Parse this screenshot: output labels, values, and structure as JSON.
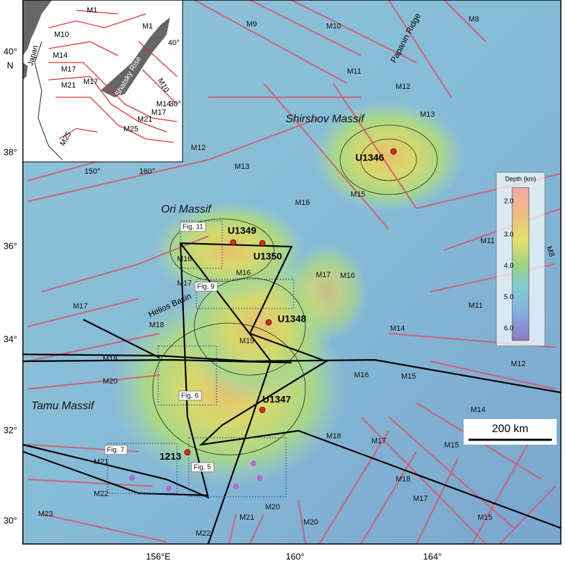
{
  "axes": {
    "lon_labels": [
      "156°E",
      "160°",
      "164°"
    ],
    "lat_labels": [
      "30°",
      "32°",
      "34°",
      "36°",
      "38°",
      "40°"
    ],
    "lat_unit": "N"
  },
  "regions": [
    "Shirshov Massif",
    "Ori Massif",
    "Tamu Massif",
    "Helios Basin",
    "Papanin Ridge"
  ],
  "sites": [
    "U1346",
    "U1349",
    "U1350",
    "U1348",
    "U1347",
    "1213"
  ],
  "figure_refs": [
    "Fig. 11",
    "Fig. 9",
    "Fig. 6",
    "Fig. 7",
    "Fig. 5"
  ],
  "anomalies": [
    "M9",
    "M10",
    "M8",
    "M11",
    "M12",
    "M13",
    "M12",
    "M13",
    "M16",
    "M15",
    "M16",
    "M17",
    "M16",
    "M17",
    "M16",
    "M11",
    "M8",
    "M17",
    "M18",
    "M14",
    "M11",
    "M19",
    "M19",
    "M12",
    "M20",
    "M15",
    "M16",
    "M14",
    "M18",
    "M17",
    "M15",
    "M21",
    "M22",
    "M21",
    "M20",
    "M18",
    "M17",
    "M15",
    "M23",
    "M22",
    "M20"
  ],
  "legend": {
    "title": "Depth (km)",
    "ticks": [
      "2.0",
      "3.0",
      "4.0",
      "5.0",
      "6.0"
    ]
  },
  "scale_bar": "200 km",
  "inset": {
    "labels": [
      "M1",
      "M1",
      "M10",
      "Japan",
      "M14",
      "M17",
      "M21",
      "M17",
      "Shatsky Rise",
      "M10",
      "M14",
      "M17",
      "M21",
      "M25",
      "M25"
    ],
    "lat_labels": [
      "40°",
      "30°"
    ],
    "lon_labels": [
      "150°",
      "160°"
    ]
  }
}
